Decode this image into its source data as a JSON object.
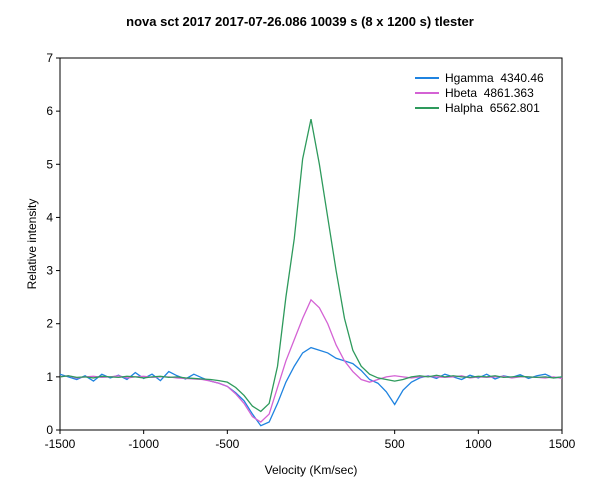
{
  "chart_data": {
    "type": "line",
    "title": "nova sct 2017   2017-07-26.086   10039 s (8 x 1200 s)   tlester",
    "xlabel": "Velocity (Km/sec)",
    "ylabel": "Relative intensity",
    "xlim": [
      -1500,
      1500
    ],
    "xticks": [
      -1500,
      -1000,
      -500,
      500,
      1000,
      1500
    ],
    "ylim": [
      0,
      7
    ],
    "yticks": [
      0,
      1,
      2,
      3,
      4,
      5,
      6,
      7
    ],
    "legend": "upper right",
    "x": [
      -1500,
      -1450,
      -1400,
      -1350,
      -1300,
      -1250,
      -1200,
      -1150,
      -1100,
      -1050,
      -1000,
      -950,
      -900,
      -850,
      -800,
      -750,
      -700,
      -650,
      -600,
      -550,
      -500,
      -450,
      -400,
      -350,
      -300,
      -250,
      -200,
      -150,
      -100,
      -50,
      0,
      50,
      100,
      150,
      200,
      250,
      300,
      350,
      400,
      450,
      500,
      550,
      600,
      650,
      700,
      750,
      800,
      850,
      900,
      950,
      1000,
      1050,
      1100,
      1150,
      1200,
      1250,
      1300,
      1350,
      1400,
      1450,
      1500
    ],
    "series": [
      {
        "name": "Hgamma  4340.46",
        "color": "#1f83e0",
        "values": [
          1.05,
          1.0,
          0.95,
          1.02,
          0.92,
          1.05,
          0.98,
          1.03,
          0.95,
          1.08,
          0.97,
          1.05,
          0.93,
          1.1,
          1.02,
          0.96,
          1.05,
          0.98,
          0.92,
          0.88,
          0.82,
          0.7,
          0.55,
          0.3,
          0.08,
          0.15,
          0.5,
          0.9,
          1.2,
          1.45,
          1.55,
          1.5,
          1.45,
          1.35,
          1.3,
          1.25,
          1.12,
          0.95,
          0.88,
          0.72,
          0.48,
          0.75,
          0.9,
          0.98,
          1.02,
          0.97,
          1.05,
          1.0,
          0.95,
          1.03,
          0.98,
          1.05,
          0.96,
          1.02,
          0.99,
          1.04,
          0.97,
          1.02,
          1.05,
          0.98,
          1.0
        ]
      },
      {
        "name": "Hbeta  4861.363",
        "color": "#d462d4",
        "values": [
          1.0,
          1.02,
          0.98,
          1.0,
          1.01,
          0.99,
          1.0,
          1.02,
          0.98,
          1.0,
          1.01,
          0.99,
          1.0,
          1.0,
          0.98,
          0.97,
          0.96,
          0.95,
          0.92,
          0.88,
          0.82,
          0.68,
          0.5,
          0.25,
          0.15,
          0.3,
          0.8,
          1.3,
          1.7,
          2.1,
          2.45,
          2.3,
          2.0,
          1.6,
          1.3,
          1.1,
          0.95,
          0.9,
          0.95,
          1.0,
          1.02,
          1.0,
          0.98,
          1.0,
          1.01,
          1.0,
          0.99,
          1.0,
          1.02,
          0.98,
          1.0,
          0.99,
          1.0,
          1.01,
          0.98,
          1.0,
          1.0,
          0.99,
          0.98,
          1.0,
          0.97
        ]
      },
      {
        "name": "Halpha  6562.801",
        "color": "#2e9a5c",
        "values": [
          1.0,
          1.02,
          0.99,
          1.0,
          0.98,
          1.01,
          1.0,
          0.99,
          1.01,
          1.0,
          0.98,
          1.0,
          1.01,
          0.99,
          1.0,
          0.98,
          0.97,
          0.96,
          0.95,
          0.93,
          0.9,
          0.8,
          0.65,
          0.45,
          0.35,
          0.5,
          1.2,
          2.5,
          3.6,
          5.1,
          5.85,
          5.0,
          4.0,
          3.0,
          2.1,
          1.5,
          1.2,
          1.05,
          0.98,
          0.95,
          0.92,
          0.95,
          1.0,
          1.02,
          1.0,
          1.03,
          1.0,
          1.02,
          1.0,
          0.99,
          1.01,
          1.0,
          1.02,
          0.99,
          1.0,
          1.01,
          1.0,
          0.99,
          1.0,
          0.98,
          1.0
        ]
      }
    ]
  }
}
